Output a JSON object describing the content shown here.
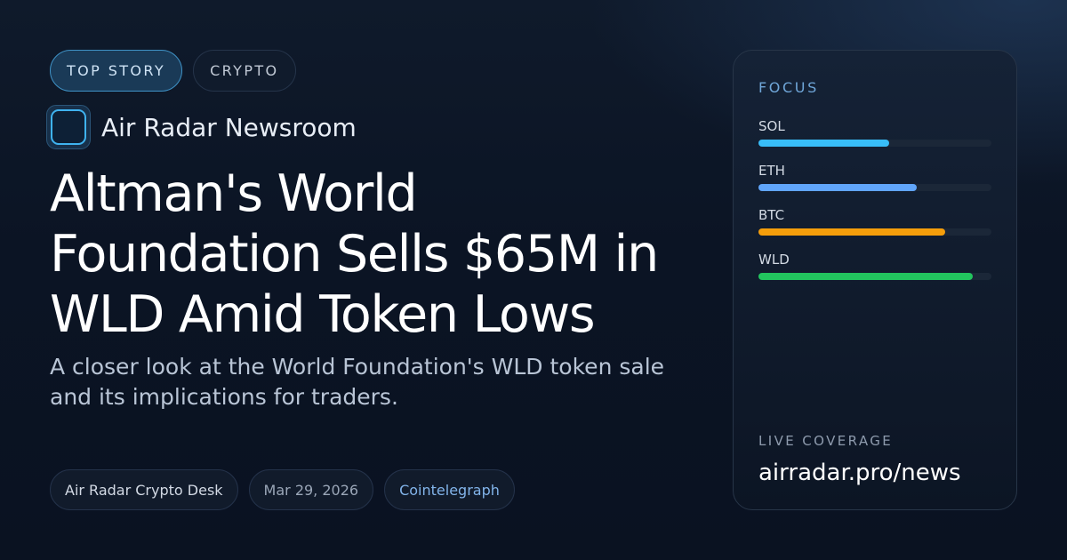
{
  "tags": {
    "primary": "TOP STORY",
    "category": "CRYPTO"
  },
  "brand": {
    "name": "Air Radar Newsroom"
  },
  "article": {
    "headline": "Altman's World Foundation Sells $65M in WLD Amid Token Lows",
    "subhead": "A closer look at the World Foundation's WLD token sale and its implications for traders."
  },
  "meta": {
    "author": "Air Radar Crypto Desk",
    "date": "Mar 29, 2026",
    "source": "Cointelegraph"
  },
  "panel": {
    "focus_label": "FOCUS",
    "bars": [
      {
        "label": "SOL",
        "level": 0.56,
        "color": "#38bdf8"
      },
      {
        "label": "ETH",
        "level": 0.68,
        "color": "#60a5fa"
      },
      {
        "label": "BTC",
        "level": 0.8,
        "color": "#f59e0b"
      },
      {
        "label": "WLD",
        "level": 0.92,
        "color": "#22c55e"
      }
    ],
    "live_label": "LIVE COVERAGE",
    "live_url": "airradar.pro/news"
  },
  "icons": {
    "brand_logo": "rounded-square-icon"
  }
}
